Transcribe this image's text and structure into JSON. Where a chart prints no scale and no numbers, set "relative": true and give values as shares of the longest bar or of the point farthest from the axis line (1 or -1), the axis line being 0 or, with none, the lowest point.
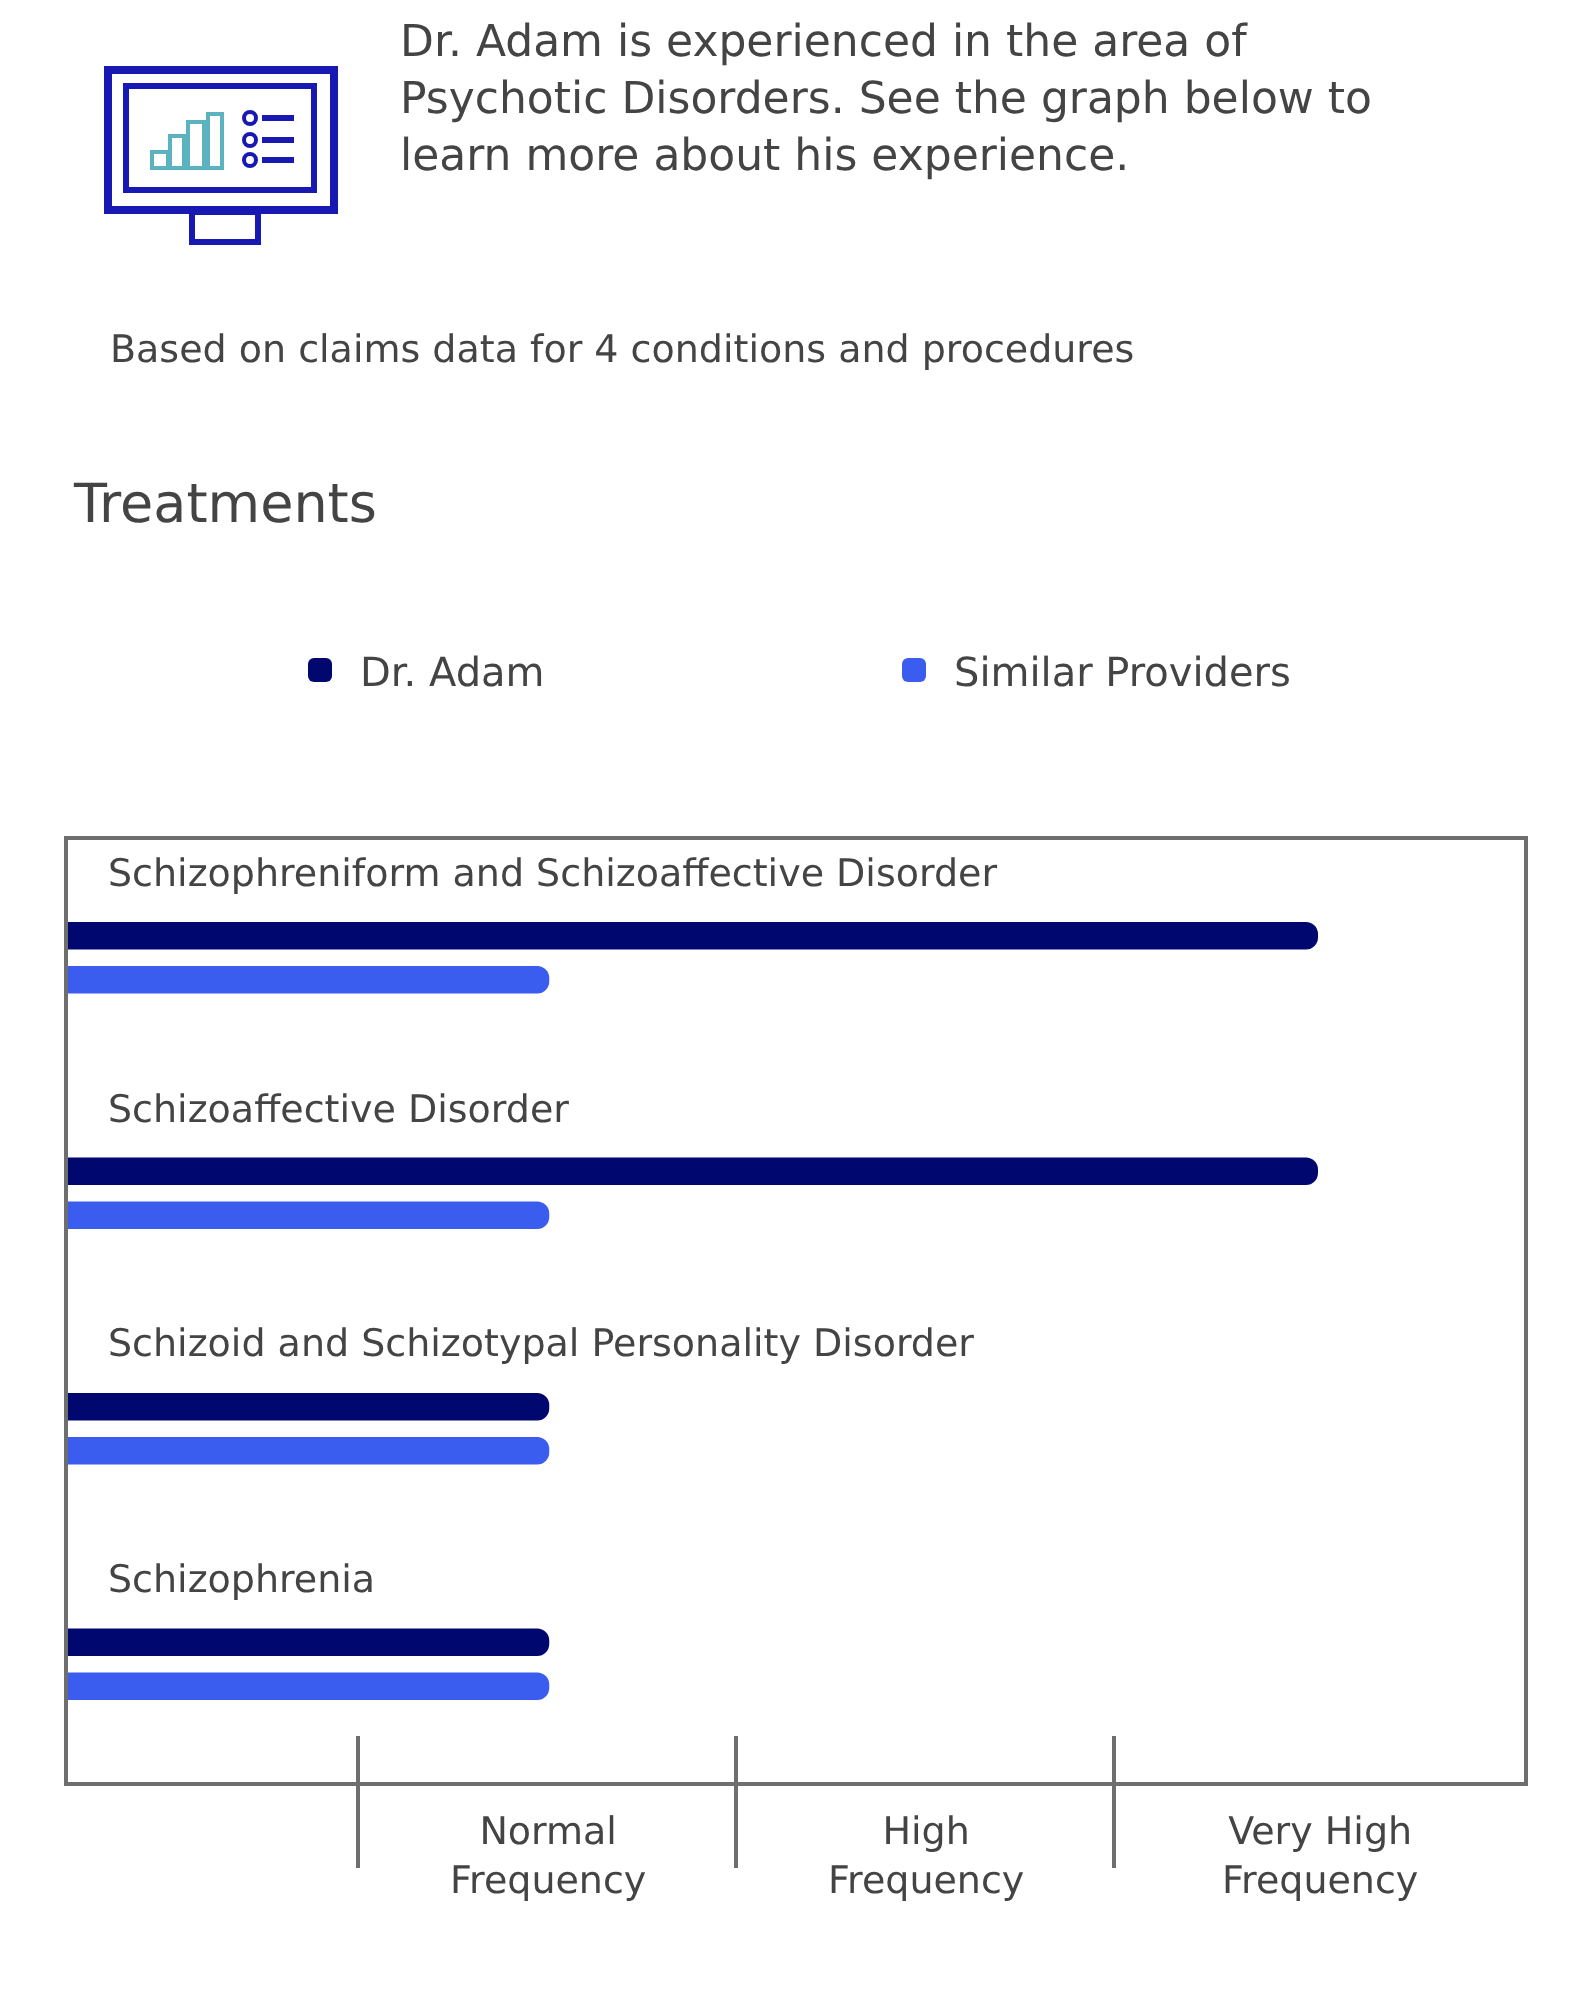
{
  "chart_data": {
    "type": "bar",
    "orientation": "horizontal",
    "relative": true,
    "title": "Dr. Adam is experienced in the area of Psychotic Disorders. See the graph below to learn more about his experience.",
    "subtitle": "Based on claims data for 4 conditions and procedures",
    "annotations": [
      "Treatments",
      "Normal Frequency",
      "High Frequency",
      "Very High Frequency"
    ],
    "categories": [
      "Schizophreniform and Schizoaffective Disorder",
      "Schizoaffective Disorder",
      "Schizoid and Schizotypal Personality Disorder",
      "Schizophrenia"
    ],
    "series": [
      {
        "name": "Dr. Adam",
        "color": "#00076e",
        "values": [
          1,
          1,
          0.385,
          0.385
        ]
      },
      {
        "name": "Similar Providers",
        "color": "#3a5cef",
        "values": [
          0.385,
          0.385,
          0.385,
          0.385
        ]
      }
    ],
    "legend": "top"
  }
}
